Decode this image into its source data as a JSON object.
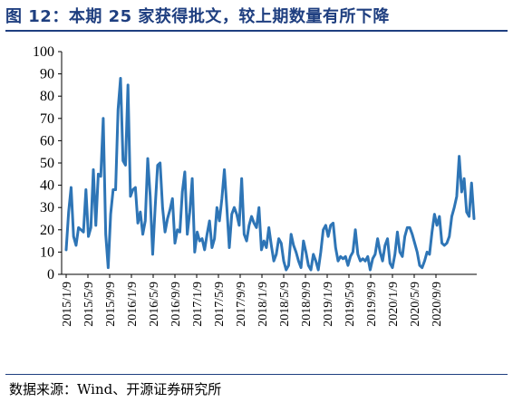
{
  "header": {
    "title": "图 12：本期 25 家获得批文，较上期数量有所下降"
  },
  "footer": {
    "source": "数据来源：Wind、开源证券研究所"
  },
  "chart_data": {
    "type": "line",
    "title": "",
    "xlabel": "",
    "ylabel": "",
    "ylim": [
      0,
      100
    ],
    "yticks": [
      0,
      10,
      20,
      30,
      40,
      50,
      60,
      70,
      80,
      90,
      100
    ],
    "xtick_labels": [
      "2015/1/9",
      "2015/5/9",
      "2015/9/9",
      "2016/1/9",
      "2016/5/9",
      "2016/9/9",
      "2017/1/9",
      "2017/5/9",
      "2017/9/9",
      "2018/1/9",
      "2018/5/9",
      "2018/9/9",
      "2019/1/9",
      "2019/5/9",
      "2019/9/9",
      "2020/1/9",
      "2020/5/9",
      "2020/9/9"
    ],
    "grid": false,
    "legend": "none",
    "line_color": "#2e75b6",
    "series": [
      {
        "values": [
          11,
          28,
          39,
          17,
          13,
          21,
          20,
          19,
          38,
          17,
          21,
          47,
          22,
          45,
          44,
          70,
          18,
          3,
          27,
          38,
          38,
          74,
          88,
          51,
          49,
          85,
          35,
          38,
          39,
          23,
          28,
          18,
          24,
          52,
          35,
          9,
          30,
          49,
          50,
          30,
          19,
          25,
          29,
          34,
          14,
          20,
          19,
          37,
          46,
          18,
          28,
          43,
          10,
          19,
          15,
          16,
          11,
          18,
          24,
          12,
          16,
          30,
          24,
          34,
          47,
          30,
          12,
          27,
          30,
          27,
          22,
          43,
          18,
          15,
          22,
          26,
          23,
          21,
          30,
          11,
          15,
          12,
          21,
          13,
          6,
          9,
          16,
          14,
          6,
          2,
          4,
          18,
          13,
          10,
          6,
          3,
          15,
          10,
          4,
          2,
          9,
          6,
          2,
          10,
          20,
          22,
          17,
          22,
          23,
          12,
          6,
          8,
          7,
          8,
          4,
          8,
          10,
          20,
          9,
          6,
          7,
          6,
          8,
          2,
          7,
          9,
          16,
          10,
          6,
          13,
          16,
          5,
          3,
          9,
          19,
          10,
          8,
          17,
          21,
          21,
          18,
          14,
          10,
          4,
          3,
          6,
          10,
          9,
          19,
          27,
          22,
          26,
          14,
          13,
          14,
          17,
          26,
          30,
          35,
          53,
          37,
          43,
          28,
          26,
          41,
          25
        ]
      }
    ]
  }
}
